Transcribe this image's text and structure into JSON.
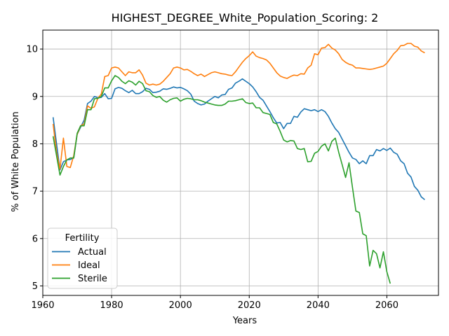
{
  "chart_data": {
    "type": "line",
    "title": "HIGHEST_DEGREE_White_Population_Scoring: 2",
    "xlabel": "Years",
    "ylabel": "% of White Population",
    "xlim": [
      1960,
      2075
    ],
    "ylim": [
      4.8,
      10.4
    ],
    "xticks": [
      1960,
      1980,
      2000,
      2020,
      2040,
      2060
    ],
    "yticks": [
      5,
      6,
      7,
      8,
      9,
      10
    ],
    "grid": true,
    "legend": {
      "title": "Fertility",
      "placement": "lower-left"
    },
    "series": [
      {
        "name": "Actual",
        "color": "#1f77b4",
        "points": [
          [
            1963,
            8.56
          ],
          [
            1964,
            8.0
          ],
          [
            1965,
            7.45
          ],
          [
            1966,
            7.62
          ],
          [
            1967,
            7.66
          ],
          [
            1968,
            7.67
          ],
          [
            1969,
            7.7
          ],
          [
            1970,
            8.2
          ],
          [
            1971,
            8.35
          ],
          [
            1972,
            8.5
          ],
          [
            1973,
            8.85
          ],
          [
            1974,
            8.9
          ],
          [
            1975,
            9.0
          ],
          [
            1976,
            8.97
          ],
          [
            1977,
            8.98
          ],
          [
            1978,
            9.06
          ],
          [
            1979,
            8.95
          ],
          [
            1980,
            8.96
          ],
          [
            1981,
            9.16
          ],
          [
            1982,
            9.19
          ],
          [
            1983,
            9.17
          ],
          [
            1984,
            9.12
          ],
          [
            1985,
            9.08
          ],
          [
            1986,
            9.13
          ],
          [
            1987,
            9.06
          ],
          [
            1988,
            9.06
          ],
          [
            1989,
            9.1
          ],
          [
            1990,
            9.17
          ],
          [
            1991,
            9.15
          ],
          [
            1992,
            9.08
          ],
          [
            1993,
            9.09
          ],
          [
            1994,
            9.11
          ],
          [
            1995,
            9.16
          ],
          [
            1996,
            9.15
          ],
          [
            1997,
            9.17
          ],
          [
            1998,
            9.2
          ],
          [
            1999,
            9.18
          ],
          [
            2000,
            9.19
          ],
          [
            2001,
            9.16
          ],
          [
            2002,
            9.12
          ],
          [
            2003,
            9.05
          ],
          [
            2004,
            8.9
          ],
          [
            2005,
            8.85
          ],
          [
            2006,
            8.82
          ],
          [
            2007,
            8.84
          ],
          [
            2008,
            8.9
          ],
          [
            2009,
            8.95
          ],
          [
            2010,
            9.0
          ],
          [
            2011,
            8.97
          ],
          [
            2012,
            9.03
          ],
          [
            2013,
            9.04
          ],
          [
            2014,
            9.15
          ],
          [
            2015,
            9.18
          ],
          [
            2016,
            9.28
          ],
          [
            2017,
            9.32
          ],
          [
            2018,
            9.37
          ],
          [
            2019,
            9.32
          ],
          [
            2020,
            9.27
          ],
          [
            2021,
            9.2
          ],
          [
            2022,
            9.1
          ],
          [
            2023,
            8.98
          ],
          [
            2024,
            8.92
          ],
          [
            2025,
            8.8
          ],
          [
            2026,
            8.68
          ],
          [
            2027,
            8.55
          ],
          [
            2028,
            8.44
          ],
          [
            2029,
            8.45
          ],
          [
            2030,
            8.32
          ],
          [
            2031,
            8.43
          ],
          [
            2032,
            8.43
          ],
          [
            2033,
            8.58
          ],
          [
            2034,
            8.56
          ],
          [
            2035,
            8.67
          ],
          [
            2036,
            8.74
          ],
          [
            2037,
            8.72
          ],
          [
            2038,
            8.7
          ],
          [
            2039,
            8.72
          ],
          [
            2040,
            8.68
          ],
          [
            2041,
            8.72
          ],
          [
            2042,
            8.68
          ],
          [
            2043,
            8.58
          ],
          [
            2044,
            8.44
          ],
          [
            2045,
            8.32
          ],
          [
            2046,
            8.24
          ],
          [
            2047,
            8.1
          ],
          [
            2048,
            7.96
          ],
          [
            2049,
            7.82
          ],
          [
            2050,
            7.7
          ],
          [
            2051,
            7.67
          ],
          [
            2052,
            7.58
          ],
          [
            2053,
            7.64
          ],
          [
            2054,
            7.58
          ],
          [
            2055,
            7.75
          ],
          [
            2056,
            7.75
          ],
          [
            2057,
            7.88
          ],
          [
            2058,
            7.85
          ],
          [
            2059,
            7.9
          ],
          [
            2060,
            7.86
          ],
          [
            2061,
            7.91
          ],
          [
            2062,
            7.82
          ],
          [
            2063,
            7.78
          ],
          [
            2064,
            7.64
          ],
          [
            2065,
            7.58
          ],
          [
            2066,
            7.38
          ],
          [
            2067,
            7.3
          ],
          [
            2068,
            7.1
          ],
          [
            2069,
            7.02
          ],
          [
            2070,
            6.88
          ],
          [
            2071,
            6.82
          ]
        ]
      },
      {
        "name": "Ideal",
        "color": "#ff7f0e",
        "points": [
          [
            1963,
            8.42
          ],
          [
            1964,
            7.82
          ],
          [
            1965,
            7.47
          ],
          [
            1966,
            8.12
          ],
          [
            1967,
            7.52
          ],
          [
            1968,
            7.5
          ],
          [
            1969,
            7.75
          ],
          [
            1970,
            8.2
          ],
          [
            1971,
            8.38
          ],
          [
            1972,
            8.42
          ],
          [
            1973,
            8.8
          ],
          [
            1974,
            8.75
          ],
          [
            1975,
            8.78
          ],
          [
            1976,
            8.96
          ],
          [
            1977,
            9.05
          ],
          [
            1978,
            9.42
          ],
          [
            1979,
            9.44
          ],
          [
            1980,
            9.6
          ],
          [
            1981,
            9.62
          ],
          [
            1982,
            9.6
          ],
          [
            1983,
            9.52
          ],
          [
            1984,
            9.44
          ],
          [
            1985,
            9.52
          ],
          [
            1986,
            9.5
          ],
          [
            1987,
            9.5
          ],
          [
            1988,
            9.56
          ],
          [
            1989,
            9.45
          ],
          [
            1990,
            9.28
          ],
          [
            1991,
            9.24
          ],
          [
            1992,
            9.26
          ],
          [
            1993,
            9.24
          ],
          [
            1994,
            9.26
          ],
          [
            1995,
            9.32
          ],
          [
            1996,
            9.4
          ],
          [
            1997,
            9.48
          ],
          [
            1998,
            9.6
          ],
          [
            1999,
            9.62
          ],
          [
            2000,
            9.6
          ],
          [
            2001,
            9.56
          ],
          [
            2002,
            9.57
          ],
          [
            2003,
            9.53
          ],
          [
            2004,
            9.48
          ],
          [
            2005,
            9.44
          ],
          [
            2006,
            9.47
          ],
          [
            2007,
            9.42
          ],
          [
            2008,
            9.46
          ],
          [
            2009,
            9.5
          ],
          [
            2010,
            9.52
          ],
          [
            2011,
            9.5
          ],
          [
            2012,
            9.48
          ],
          [
            2013,
            9.47
          ],
          [
            2014,
            9.45
          ],
          [
            2015,
            9.44
          ],
          [
            2016,
            9.52
          ],
          [
            2017,
            9.62
          ],
          [
            2018,
            9.72
          ],
          [
            2019,
            9.8
          ],
          [
            2020,
            9.86
          ],
          [
            2021,
            9.94
          ],
          [
            2022,
            9.85
          ],
          [
            2023,
            9.82
          ],
          [
            2024,
            9.8
          ],
          [
            2025,
            9.77
          ],
          [
            2026,
            9.7
          ],
          [
            2027,
            9.6
          ],
          [
            2028,
            9.5
          ],
          [
            2029,
            9.43
          ],
          [
            2030,
            9.4
          ],
          [
            2031,
            9.38
          ],
          [
            2032,
            9.42
          ],
          [
            2033,
            9.45
          ],
          [
            2034,
            9.44
          ],
          [
            2035,
            9.48
          ],
          [
            2036,
            9.47
          ],
          [
            2037,
            9.6
          ],
          [
            2038,
            9.66
          ],
          [
            2039,
            9.9
          ],
          [
            2040,
            9.88
          ],
          [
            2041,
            10.02
          ],
          [
            2042,
            10.03
          ],
          [
            2043,
            10.1
          ],
          [
            2044,
            10.02
          ],
          [
            2045,
            9.98
          ],
          [
            2046,
            9.9
          ],
          [
            2047,
            9.78
          ],
          [
            2048,
            9.72
          ],
          [
            2049,
            9.68
          ],
          [
            2050,
            9.66
          ],
          [
            2051,
            9.6
          ],
          [
            2052,
            9.6
          ],
          [
            2053,
            9.59
          ],
          [
            2054,
            9.58
          ],
          [
            2055,
            9.57
          ],
          [
            2056,
            9.58
          ],
          [
            2057,
            9.6
          ],
          [
            2058,
            9.62
          ],
          [
            2059,
            9.64
          ],
          [
            2060,
            9.7
          ],
          [
            2061,
            9.8
          ],
          [
            2062,
            9.9
          ],
          [
            2063,
            9.97
          ],
          [
            2064,
            10.07
          ],
          [
            2065,
            10.08
          ],
          [
            2066,
            10.12
          ],
          [
            2067,
            10.12
          ],
          [
            2068,
            10.06
          ],
          [
            2069,
            10.04
          ],
          [
            2070,
            9.96
          ],
          [
            2071,
            9.92
          ]
        ]
      },
      {
        "name": "Sterile",
        "color": "#2ca02c",
        "points": [
          [
            1963,
            8.16
          ],
          [
            1964,
            7.75
          ],
          [
            1965,
            7.34
          ],
          [
            1966,
            7.52
          ],
          [
            1967,
            7.66
          ],
          [
            1968,
            7.7
          ],
          [
            1969,
            7.7
          ],
          [
            1970,
            8.22
          ],
          [
            1971,
            8.38
          ],
          [
            1972,
            8.38
          ],
          [
            1973,
            8.72
          ],
          [
            1974,
            8.72
          ],
          [
            1975,
            8.95
          ],
          [
            1976,
            8.96
          ],
          [
            1977,
            9.0
          ],
          [
            1978,
            9.18
          ],
          [
            1979,
            9.18
          ],
          [
            1980,
            9.33
          ],
          [
            1981,
            9.44
          ],
          [
            1982,
            9.4
          ],
          [
            1983,
            9.32
          ],
          [
            1984,
            9.27
          ],
          [
            1985,
            9.33
          ],
          [
            1986,
            9.3
          ],
          [
            1987,
            9.24
          ],
          [
            1988,
            9.32
          ],
          [
            1989,
            9.27
          ],
          [
            1990,
            9.12
          ],
          [
            1991,
            9.1
          ],
          [
            1992,
            9.02
          ],
          [
            1993,
            8.98
          ],
          [
            1994,
            9.0
          ],
          [
            1995,
            8.92
          ],
          [
            1996,
            8.88
          ],
          [
            1997,
            8.93
          ],
          [
            1998,
            8.96
          ],
          [
            1999,
            8.97
          ],
          [
            2000,
            8.9
          ],
          [
            2001,
            8.94
          ],
          [
            2002,
            8.96
          ],
          [
            2003,
            8.95
          ],
          [
            2004,
            8.93
          ],
          [
            2005,
            8.93
          ],
          [
            2006,
            8.91
          ],
          [
            2007,
            8.88
          ],
          [
            2008,
            8.86
          ],
          [
            2009,
            8.84
          ],
          [
            2010,
            8.82
          ],
          [
            2011,
            8.81
          ],
          [
            2012,
            8.81
          ],
          [
            2013,
            8.84
          ],
          [
            2014,
            8.9
          ],
          [
            2015,
            8.9
          ],
          [
            2016,
            8.91
          ],
          [
            2017,
            8.93
          ],
          [
            2018,
            8.95
          ],
          [
            2019,
            8.87
          ],
          [
            2020,
            8.85
          ],
          [
            2021,
            8.86
          ],
          [
            2022,
            8.76
          ],
          [
            2023,
            8.76
          ],
          [
            2024,
            8.66
          ],
          [
            2025,
            8.64
          ],
          [
            2026,
            8.62
          ],
          [
            2027,
            8.45
          ],
          [
            2028,
            8.42
          ],
          [
            2029,
            8.26
          ],
          [
            2030,
            8.08
          ],
          [
            2031,
            8.04
          ],
          [
            2032,
            8.07
          ],
          [
            2033,
            8.06
          ],
          [
            2034,
            7.9
          ],
          [
            2035,
            7.88
          ],
          [
            2036,
            7.9
          ],
          [
            2037,
            7.62
          ],
          [
            2038,
            7.63
          ],
          [
            2039,
            7.8
          ],
          [
            2040,
            7.84
          ],
          [
            2041,
            7.95
          ],
          [
            2042,
            8.0
          ],
          [
            2043,
            7.85
          ],
          [
            2044,
            8.05
          ],
          [
            2045,
            8.12
          ],
          [
            2046,
            7.82
          ],
          [
            2047,
            7.56
          ],
          [
            2048,
            7.29
          ],
          [
            2049,
            7.6
          ],
          [
            2050,
            7.08
          ],
          [
            2051,
            6.58
          ],
          [
            2052,
            6.55
          ],
          [
            2053,
            6.1
          ],
          [
            2054,
            6.06
          ],
          [
            2055,
            5.42
          ],
          [
            2056,
            5.75
          ],
          [
            2057,
            5.68
          ],
          [
            2058,
            5.38
          ],
          [
            2059,
            5.72
          ],
          [
            2060,
            5.3
          ],
          [
            2061,
            5.05
          ]
        ]
      }
    ]
  }
}
